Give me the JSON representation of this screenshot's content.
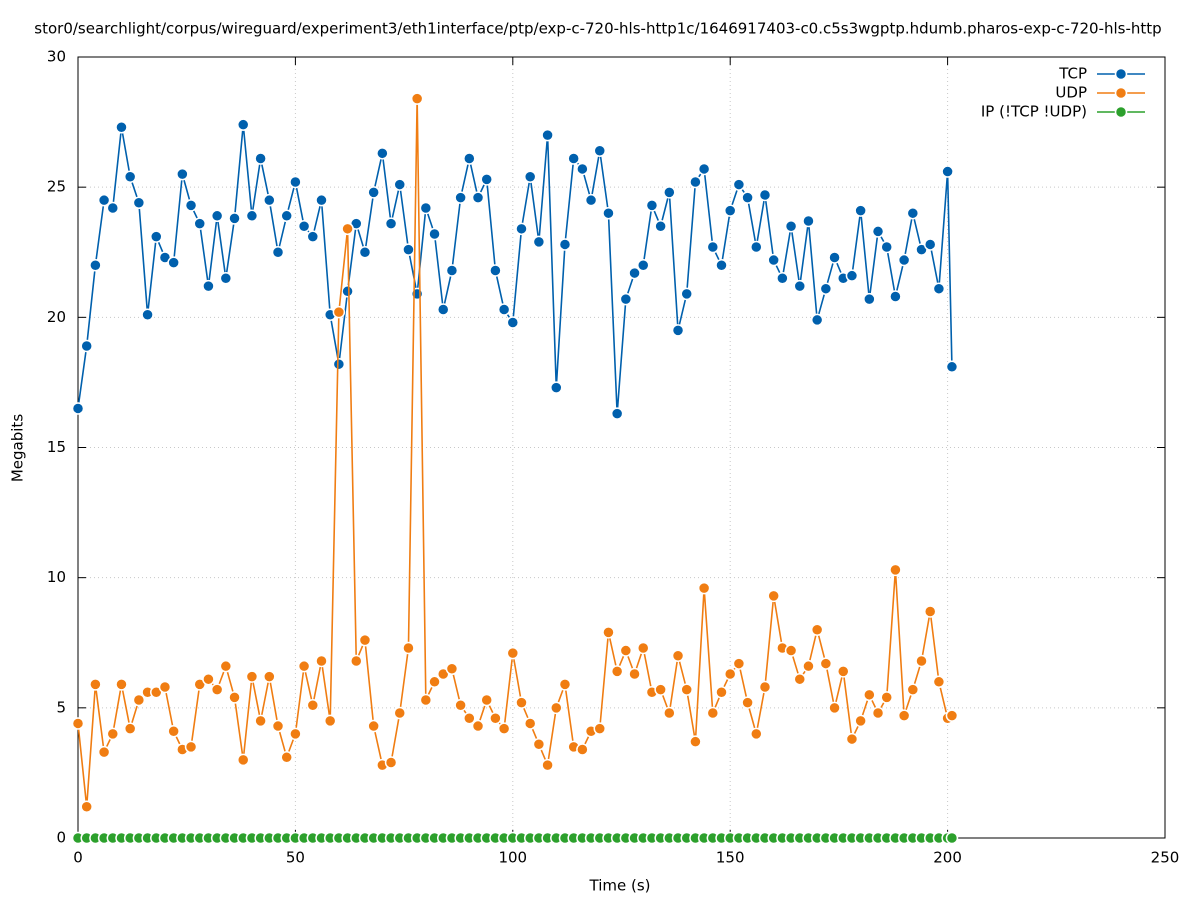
{
  "chart_data": {
    "type": "line",
    "title": "stor0/searchlight/corpus/wireguard/experiment3/eth1interface/ptp/exp-c-720-hls-http1c/1646917403-c0.c5s3wgptp.hdumb.pharos-exp-c-720-hls-http",
    "x_label": "Time (s)",
    "y_label": "Megabits",
    "xlim": [
      0,
      250
    ],
    "xticks": [
      0,
      50,
      100,
      150,
      200,
      250
    ],
    "ylim": [
      0,
      30
    ],
    "yticks": [
      0,
      5,
      10,
      15,
      20,
      25,
      30
    ],
    "grid": true,
    "legend": "top-right",
    "x": [
      0,
      2,
      4,
      6,
      8,
      10,
      12,
      14,
      16,
      18,
      20,
      22,
      24,
      26,
      28,
      30,
      32,
      34,
      36,
      38,
      40,
      42,
      44,
      46,
      48,
      50,
      52,
      54,
      56,
      58,
      60,
      62,
      64,
      66,
      68,
      70,
      72,
      74,
      76,
      78,
      80,
      82,
      84,
      86,
      88,
      90,
      92,
      94,
      96,
      98,
      100,
      102,
      104,
      106,
      108,
      110,
      112,
      114,
      116,
      118,
      120,
      122,
      124,
      126,
      128,
      130,
      132,
      134,
      136,
      138,
      140,
      142,
      144,
      146,
      148,
      150,
      152,
      154,
      156,
      158,
      160,
      162,
      164,
      166,
      168,
      170,
      172,
      174,
      176,
      178,
      180,
      182,
      184,
      186,
      188,
      190,
      192,
      194,
      196,
      198,
      200,
      201
    ],
    "series": [
      {
        "name": "TCP",
        "color": "#0060ad",
        "values": [
          16.5,
          18.9,
          22.0,
          24.5,
          24.2,
          27.3,
          25.4,
          24.4,
          20.1,
          23.1,
          22.3,
          22.1,
          25.5,
          24.3,
          23.6,
          21.2,
          23.9,
          21.5,
          23.8,
          27.4,
          23.9,
          26.1,
          24.5,
          22.5,
          23.9,
          25.2,
          23.5,
          23.1,
          24.5,
          20.1,
          18.2,
          21.0,
          23.6,
          22.5,
          24.8,
          26.3,
          23.6,
          25.1,
          22.6,
          20.9,
          24.2,
          23.2,
          20.3,
          21.8,
          24.6,
          26.1,
          24.6,
          25.3,
          21.8,
          20.3,
          19.8,
          23.4,
          25.4,
          22.9,
          27.0,
          17.3,
          22.8,
          26.1,
          25.7,
          24.5,
          26.4,
          24.0,
          16.3,
          20.7,
          21.7,
          22.0,
          24.3,
          23.5,
          24.8,
          19.5,
          20.9,
          25.2,
          25.7,
          22.7,
          22.0,
          24.1,
          25.1,
          24.6,
          22.7,
          24.7,
          22.2,
          21.5,
          23.5,
          21.2,
          23.7,
          19.9,
          21.1,
          22.3,
          21.5,
          21.6,
          24.1,
          20.7,
          23.3,
          22.7,
          20.8,
          22.2,
          24.0,
          22.6,
          22.8,
          21.1,
          25.6,
          18.1
        ]
      },
      {
        "name": "UDP",
        "color": "#f07d12",
        "values": [
          4.4,
          1.2,
          5.9,
          3.3,
          4.0,
          5.9,
          4.2,
          5.3,
          5.6,
          5.6,
          5.8,
          4.1,
          3.4,
          3.5,
          5.9,
          6.1,
          5.7,
          6.6,
          5.4,
          3.0,
          6.2,
          4.5,
          6.2,
          4.3,
          3.1,
          4.0,
          6.6,
          5.1,
          6.8,
          4.5,
          20.2,
          23.4,
          6.8,
          7.6,
          4.3,
          2.8,
          2.9,
          4.8,
          7.3,
          28.4,
          5.3,
          6.0,
          6.3,
          6.5,
          5.1,
          4.6,
          4.3,
          5.3,
          4.6,
          4.2,
          7.1,
          5.2,
          4.4,
          3.6,
          2.8,
          5.0,
          5.9,
          3.5,
          3.4,
          4.1,
          4.2,
          7.9,
          6.4,
          7.2,
          6.3,
          7.3,
          5.6,
          5.7,
          4.8,
          7.0,
          5.7,
          3.7,
          9.6,
          4.8,
          5.6,
          6.3,
          6.7,
          5.2,
          4.0,
          5.8,
          9.3,
          7.3,
          7.2,
          6.1,
          6.6,
          8.0,
          6.7,
          5.0,
          6.4,
          3.8,
          4.5,
          5.5,
          4.8,
          5.4,
          10.3,
          4.7,
          5.7,
          6.8,
          8.7,
          6.0,
          4.6,
          4.7
        ]
      },
      {
        "name": "IP (!TCP  !UDP)",
        "color": "#2ca02c",
        "values": [
          0,
          0,
          0,
          0,
          0,
          0,
          0,
          0,
          0,
          0,
          0,
          0,
          0,
          0,
          0,
          0,
          0,
          0,
          0,
          0,
          0,
          0,
          0,
          0,
          0,
          0,
          0,
          0,
          0,
          0,
          0,
          0,
          0,
          0,
          0,
          0,
          0,
          0,
          0,
          0,
          0,
          0,
          0,
          0,
          0,
          0,
          0,
          0,
          0,
          0,
          0,
          0,
          0,
          0,
          0,
          0,
          0,
          0,
          0,
          0,
          0,
          0,
          0,
          0,
          0,
          0,
          0,
          0,
          0,
          0,
          0,
          0,
          0,
          0,
          0,
          0,
          0,
          0,
          0,
          0,
          0,
          0,
          0,
          0,
          0,
          0,
          0,
          0,
          0,
          0,
          0,
          0,
          0,
          0,
          0,
          0,
          0,
          0,
          0,
          0,
          0,
          0
        ]
      }
    ]
  }
}
